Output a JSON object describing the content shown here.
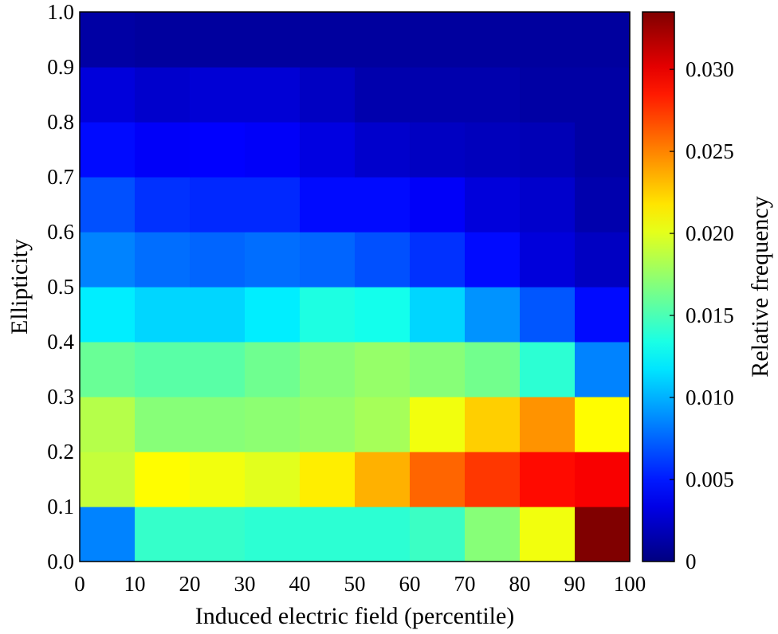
{
  "chart_data": {
    "type": "heatmap",
    "title": "",
    "xlabel": "Induced electric field (percentile)",
    "ylabel": "Ellipticity",
    "colorbar_label": "Relative frequency",
    "xlim": [
      0,
      100
    ],
    "ylim": [
      0.0,
      1.0
    ],
    "x_ticks": [
      "0",
      "10",
      "20",
      "30",
      "40",
      "50",
      "60",
      "70",
      "80",
      "90",
      "100"
    ],
    "y_ticks": [
      "0.0",
      "0.1",
      "0.2",
      "0.3",
      "0.4",
      "0.5",
      "0.6",
      "0.7",
      "0.8",
      "0.9",
      "1.0"
    ],
    "colorbar_range": [
      0,
      0.0335
    ],
    "colorbar_ticks": [
      "0",
      "0.005",
      "0.010",
      "0.015",
      "0.020",
      "0.025",
      "0.030"
    ],
    "colormap": "jet",
    "x_bins": [
      "0-10",
      "10-20",
      "20-30",
      "30-40",
      "40-50",
      "50-60",
      "60-70",
      "70-80",
      "80-90",
      "90-100"
    ],
    "y_bins": [
      "0.0-0.1",
      "0.1-0.2",
      "0.2-0.3",
      "0.3-0.4",
      "0.4-0.5",
      "0.5-0.6",
      "0.6-0.7",
      "0.7-0.8",
      "0.8-0.9",
      "0.9-1.0"
    ],
    "values": [
      [
        0.0085,
        0.0143,
        0.0143,
        0.014,
        0.014,
        0.014,
        0.0145,
        0.017,
        0.0205,
        0.0335
      ],
      [
        0.019,
        0.021,
        0.0205,
        0.02,
        0.0215,
        0.0235,
        0.026,
        0.0275,
        0.029,
        0.0295
      ],
      [
        0.0185,
        0.017,
        0.017,
        0.0172,
        0.0175,
        0.018,
        0.0205,
        0.0225,
        0.0245,
        0.021
      ],
      [
        0.016,
        0.0155,
        0.0155,
        0.0162,
        0.017,
        0.0175,
        0.017,
        0.0163,
        0.014,
        0.0085
      ],
      [
        0.012,
        0.0112,
        0.0112,
        0.012,
        0.0135,
        0.0132,
        0.0112,
        0.009,
        0.007,
        0.0045
      ],
      [
        0.0085,
        0.0078,
        0.0075,
        0.0078,
        0.0075,
        0.0068,
        0.0058,
        0.0045,
        0.003,
        0.0022
      ],
      [
        0.0068,
        0.0058,
        0.0055,
        0.0055,
        0.0045,
        0.0045,
        0.004,
        0.003,
        0.0025,
        0.0015
      ],
      [
        0.0045,
        0.004,
        0.0042,
        0.004,
        0.0032,
        0.0025,
        0.0022,
        0.002,
        0.0018,
        0.0012
      ],
      [
        0.003,
        0.0025,
        0.0028,
        0.0028,
        0.0022,
        0.0015,
        0.0015,
        0.0015,
        0.0012,
        0.0012
      ],
      [
        0.0012,
        0.001,
        0.001,
        0.001,
        0.001,
        0.001,
        0.001,
        0.001,
        0.001,
        0.001
      ]
    ]
  }
}
